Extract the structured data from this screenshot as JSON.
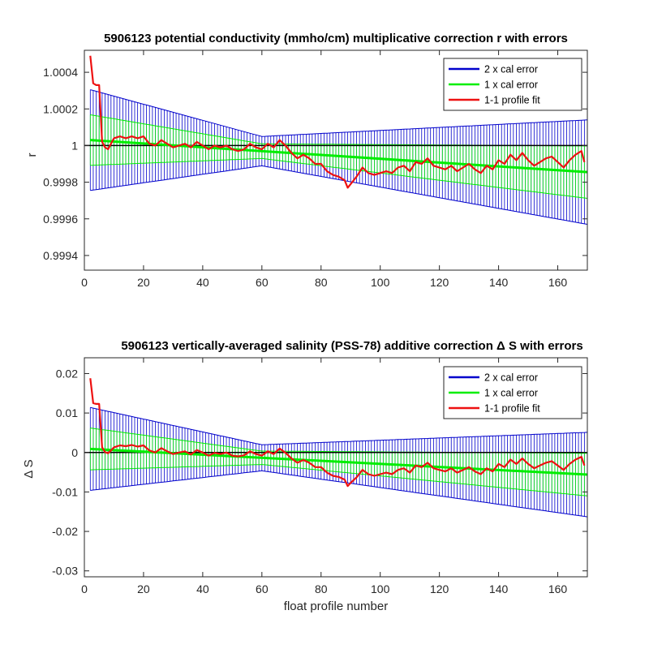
{
  "colors": {
    "cal2": "#0000cc",
    "cal1": "#00ee00",
    "fit": "#ee1111",
    "zero": "#000000"
  },
  "chart_data": [
    {
      "type": "line",
      "title": "5906123 potential conductivity (mmho/cm) multiplicative correction r with errors",
      "xlabel": "",
      "ylabel": "r",
      "xlim": [
        0,
        170
      ],
      "ylim": [
        0.99932,
        1.00052
      ],
      "xticks": [
        0,
        20,
        40,
        60,
        80,
        100,
        120,
        140,
        160
      ],
      "xtick_labels": [
        "0",
        "20",
        "40",
        "60",
        "80",
        "100",
        "120",
        "140",
        "160"
      ],
      "yticks": [
        0.9994,
        0.9996,
        0.9998,
        1.0,
        1.0002,
        1.0004
      ],
      "ytick_labels": [
        "0.9994",
        "0.9996",
        "0.9998",
        "1",
        "1.0002",
        "1.0004"
      ],
      "reference_line": 1.0,
      "legend": {
        "position": "top-right",
        "entries": [
          "2 x cal error",
          "1 x cal error",
          "1-1 profile fit"
        ]
      },
      "fit_line": {
        "x": [
          2,
          170
        ],
        "y": [
          1.00003,
          0.999855
        ]
      },
      "error_band_2x": {
        "x": [
          2,
          60,
          170
        ],
        "halfwidth": [
          0.000275,
          8e-05,
          0.000285
        ]
      },
      "error_band_1x": {
        "x": [
          2,
          60,
          170
        ],
        "halfwidth": [
          0.000138,
          4e-05,
          0.000143
        ]
      },
      "series": [
        {
          "name": "1-1 profile fit",
          "x": [
            2,
            3,
            4,
            5,
            6,
            7,
            8,
            9,
            10,
            12,
            14,
            16,
            18,
            20,
            22,
            24,
            26,
            28,
            30,
            32,
            34,
            36,
            38,
            40,
            42,
            44,
            46,
            48,
            50,
            52,
            54,
            56,
            58,
            60,
            62,
            64,
            66,
            68,
            70,
            72,
            74,
            76,
            78,
            80,
            82,
            84,
            86,
            88,
            89,
            90,
            92,
            94,
            96,
            98,
            100,
            102,
            104,
            106,
            108,
            110,
            112,
            114,
            116,
            118,
            120,
            122,
            124,
            126,
            128,
            130,
            132,
            134,
            136,
            138,
            140,
            142,
            144,
            146,
            148,
            150,
            152,
            154,
            156,
            158,
            160,
            162,
            164,
            166,
            168,
            169
          ],
          "y": [
            1.00049,
            1.00034,
            1.00033,
            1.00033,
            1.00002,
            0.99999,
            0.99998,
            1.00001,
            1.00004,
            1.00005,
            1.00004,
            1.00005,
            1.00004,
            1.00005,
            1.00001,
            1.0,
            1.00003,
            1.00001,
            0.99999,
            1.0,
            1.00001,
            0.99999,
            1.00002,
            1.0,
            0.99998,
            1.0,
            0.99999,
            1.0,
            0.99998,
            0.99997,
            0.99998,
            1.00001,
            0.99999,
            0.99998,
            1.00001,
            0.99999,
            1.00003,
            1.0,
            0.99996,
            0.99993,
            0.99995,
            0.99993,
            0.9999,
            0.9999,
            0.99986,
            0.99984,
            0.99983,
            0.99981,
            0.99977,
            0.99979,
            0.99983,
            0.99988,
            0.99985,
            0.99984,
            0.99985,
            0.99986,
            0.99985,
            0.99988,
            0.99989,
            0.99986,
            0.99991,
            0.9999,
            0.99993,
            0.99989,
            0.99988,
            0.99987,
            0.99989,
            0.99986,
            0.99988,
            0.9999,
            0.99987,
            0.99985,
            0.99989,
            0.99987,
            0.99992,
            0.9999,
            0.99995,
            0.99992,
            0.99996,
            0.99992,
            0.99989,
            0.99991,
            0.99993,
            0.99994,
            0.99991,
            0.99988,
            0.99992,
            0.99995,
            0.99997,
            0.99991
          ]
        }
      ]
    },
    {
      "type": "line",
      "title": "5906123 vertically-averaged salinity (PSS-78) additive correction Δ S with errors",
      "xlabel": "float profile number",
      "ylabel": "Δ S",
      "xlim": [
        0,
        170
      ],
      "ylim": [
        -0.0315,
        0.024
      ],
      "xticks": [
        0,
        20,
        40,
        60,
        80,
        100,
        120,
        140,
        160
      ],
      "xtick_labels": [
        "0",
        "20",
        "40",
        "60",
        "80",
        "100",
        "120",
        "140",
        "160"
      ],
      "yticks": [
        -0.03,
        -0.02,
        -0.01,
        0.0,
        0.01,
        0.02
      ],
      "ytick_labels": [
        "-0.03",
        "-0.02",
        "-0.01",
        "0",
        "0.01",
        "0.02"
      ],
      "reference_line": 0.0,
      "legend": {
        "position": "top-right",
        "entries": [
          "2 x cal error",
          "1 x cal error",
          "1-1 profile fit"
        ]
      },
      "fit_line": {
        "x": [
          2,
          170
        ],
        "y": [
          0.0009,
          -0.0056
        ]
      },
      "error_band_2x": {
        "x": [
          2,
          60,
          170
        ],
        "halfwidth": [
          0.0105,
          0.0033,
          0.0107
        ]
      },
      "error_band_1x": {
        "x": [
          2,
          60,
          170
        ],
        "halfwidth": [
          0.0053,
          0.0017,
          0.0054
        ]
      },
      "series": [
        {
          "name": "1-1 profile fit",
          "x": [
            2,
            3,
            4,
            5,
            6,
            7,
            8,
            9,
            10,
            12,
            14,
            16,
            18,
            20,
            22,
            24,
            26,
            28,
            30,
            32,
            34,
            36,
            38,
            40,
            42,
            44,
            46,
            48,
            50,
            52,
            54,
            56,
            58,
            60,
            62,
            64,
            66,
            68,
            70,
            72,
            74,
            76,
            78,
            80,
            82,
            84,
            86,
            88,
            89,
            90,
            92,
            94,
            96,
            98,
            100,
            102,
            104,
            106,
            108,
            110,
            112,
            114,
            116,
            118,
            120,
            122,
            124,
            126,
            128,
            130,
            132,
            134,
            136,
            138,
            140,
            142,
            144,
            146,
            148,
            150,
            152,
            154,
            156,
            158,
            160,
            162,
            164,
            166,
            168,
            169
          ],
          "y": [
            0.0188,
            0.0125,
            0.0123,
            0.0123,
            0.0013,
            0.0001,
            -0.0002,
            0.0005,
            0.0013,
            0.0018,
            0.0016,
            0.0019,
            0.0015,
            0.0018,
            0.0005,
            0.0,
            0.0011,
            0.0003,
            -0.0004,
            0.0,
            0.0003,
            -0.0005,
            0.0006,
            0.0,
            -0.0008,
            -0.0001,
            -0.0004,
            0.0,
            -0.0008,
            -0.001,
            -0.0007,
            0.0003,
            -0.0004,
            -0.0008,
            0.0003,
            -0.0004,
            0.001,
            -0.0001,
            -0.0015,
            -0.0026,
            -0.0019,
            -0.0026,
            -0.0037,
            -0.0037,
            -0.0051,
            -0.0059,
            -0.0062,
            -0.0069,
            -0.0085,
            -0.0077,
            -0.0063,
            -0.0044,
            -0.0055,
            -0.0059,
            -0.0055,
            -0.0051,
            -0.0055,
            -0.0044,
            -0.004,
            -0.0051,
            -0.0033,
            -0.0037,
            -0.0026,
            -0.004,
            -0.0044,
            -0.0048,
            -0.004,
            -0.0051,
            -0.0044,
            -0.0037,
            -0.0048,
            -0.0055,
            -0.004,
            -0.0048,
            -0.0029,
            -0.0037,
            -0.0018,
            -0.0029,
            -0.0015,
            -0.0029,
            -0.004,
            -0.0033,
            -0.0026,
            -0.0022,
            -0.0033,
            -0.0044,
            -0.0029,
            -0.0018,
            -0.0011,
            -0.0033
          ]
        }
      ]
    }
  ]
}
